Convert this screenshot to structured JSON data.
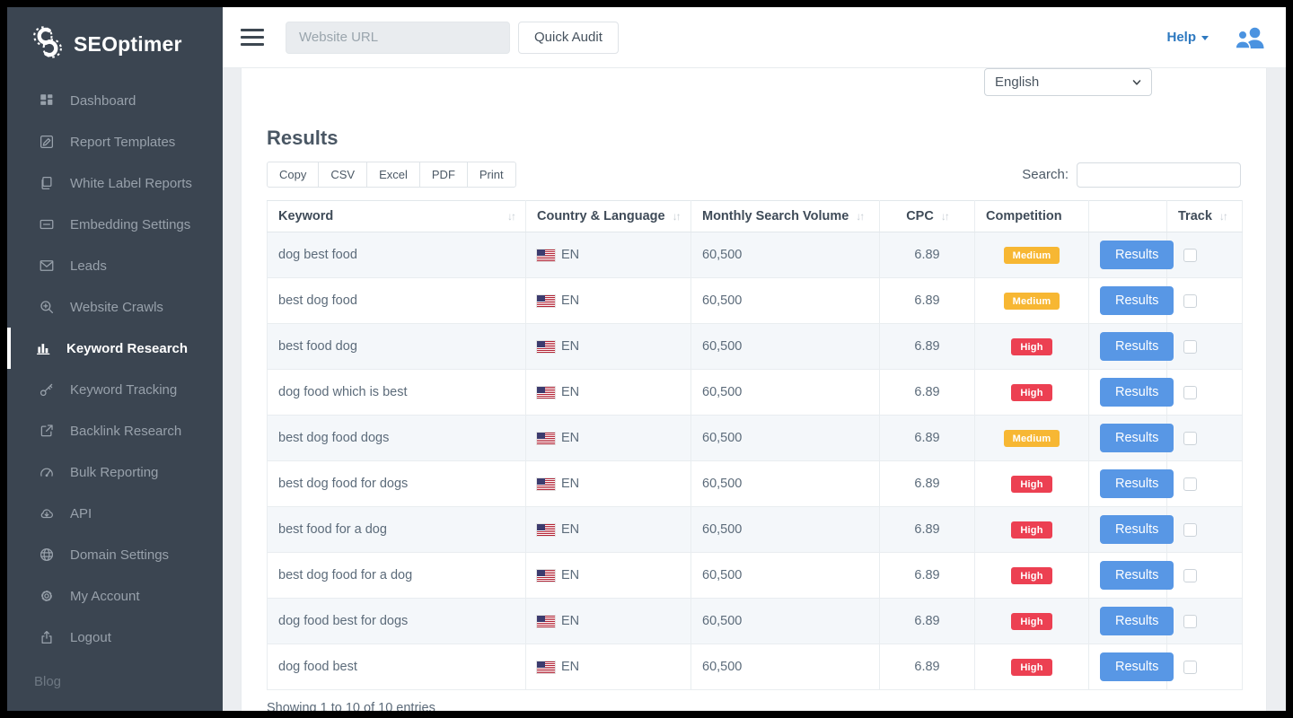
{
  "sidebar": {
    "logo_text": "SEOptimer",
    "items": [
      {
        "id": "dashboard",
        "label": "Dashboard",
        "icon": "grid",
        "active": false
      },
      {
        "id": "report-templates",
        "label": "Report Templates",
        "icon": "pencil-square",
        "active": false
      },
      {
        "id": "white-label-reports",
        "label": "White Label Reports",
        "icon": "pages",
        "active": false
      },
      {
        "id": "embedding-settings",
        "label": "Embedding Settings",
        "icon": "card",
        "active": false
      },
      {
        "id": "leads",
        "label": "Leads",
        "icon": "envelope",
        "active": false
      },
      {
        "id": "website-crawls",
        "label": "Website Crawls",
        "icon": "magnifier-plus",
        "active": false
      },
      {
        "id": "keyword-research",
        "label": "Keyword Research",
        "icon": "bar-chart",
        "active": true
      },
      {
        "id": "keyword-tracking",
        "label": "Keyword Tracking",
        "icon": "key",
        "active": false
      },
      {
        "id": "backlink-research",
        "label": "Backlink Research",
        "icon": "external-link",
        "active": false
      },
      {
        "id": "bulk-reporting",
        "label": "Bulk Reporting",
        "icon": "gauge",
        "active": false
      },
      {
        "id": "api",
        "label": "API",
        "icon": "cloud-download",
        "active": false
      },
      {
        "id": "domain-settings",
        "label": "Domain Settings",
        "icon": "globe",
        "active": false
      },
      {
        "id": "my-account",
        "label": "My Account",
        "icon": "gear",
        "active": false
      },
      {
        "id": "logout",
        "label": "Logout",
        "icon": "upload-box",
        "active": false
      }
    ],
    "footer_link": "Blog"
  },
  "navbar": {
    "url_placeholder": "Website URL",
    "quick_audit_label": "Quick Audit",
    "help_label": "Help"
  },
  "form": {
    "language_value": "English"
  },
  "results": {
    "title": "Results",
    "export_buttons": [
      "Copy",
      "CSV",
      "Excel",
      "PDF",
      "Print"
    ],
    "search_label": "Search:",
    "search_value": "",
    "table": {
      "action_label": "Results",
      "columns": [
        {
          "key": "keyword",
          "label": "Keyword",
          "sortable": true
        },
        {
          "key": "country",
          "label": "Country & Language",
          "sortable": true
        },
        {
          "key": "volume",
          "label": "Monthly Search Volume",
          "sortable": true
        },
        {
          "key": "cpc",
          "label": "CPC",
          "sortable": true
        },
        {
          "key": "competition",
          "label": "Competition",
          "sortable": false
        },
        {
          "key": "action",
          "label": "",
          "sortable": false
        },
        {
          "key": "track",
          "label": "Track",
          "sortable": true
        }
      ],
      "rows": [
        {
          "keyword": "dog best food",
          "country": "EN",
          "volume": "60,500",
          "cpc": "6.89",
          "competition": "Medium",
          "tracked": false
        },
        {
          "keyword": "best dog food",
          "country": "EN",
          "volume": "60,500",
          "cpc": "6.89",
          "competition": "Medium",
          "tracked": false
        },
        {
          "keyword": "best food dog",
          "country": "EN",
          "volume": "60,500",
          "cpc": "6.89",
          "competition": "High",
          "tracked": false
        },
        {
          "keyword": "dog food which is best",
          "country": "EN",
          "volume": "60,500",
          "cpc": "6.89",
          "competition": "High",
          "tracked": false
        },
        {
          "keyword": "best dog food dogs",
          "country": "EN",
          "volume": "60,500",
          "cpc": "6.89",
          "competition": "Medium",
          "tracked": false
        },
        {
          "keyword": "best dog food for dogs",
          "country": "EN",
          "volume": "60,500",
          "cpc": "6.89",
          "competition": "High",
          "tracked": false
        },
        {
          "keyword": "best food for a dog",
          "country": "EN",
          "volume": "60,500",
          "cpc": "6.89",
          "competition": "High",
          "tracked": false
        },
        {
          "keyword": "best dog food for a dog",
          "country": "EN",
          "volume": "60,500",
          "cpc": "6.89",
          "competition": "High",
          "tracked": false
        },
        {
          "keyword": "dog food best for dogs",
          "country": "EN",
          "volume": "60,500",
          "cpc": "6.89",
          "competition": "High",
          "tracked": false
        },
        {
          "keyword": "dog food best",
          "country": "EN",
          "volume": "60,500",
          "cpc": "6.89",
          "competition": "High",
          "tracked": false
        }
      ]
    },
    "footer_text": "Showing 1 to 10 of 10 entries"
  },
  "icons": {
    "sort": "↓↑"
  },
  "colors": {
    "sidebar_bg": "#3b4551",
    "accent_blue": "#5897e5",
    "help_blue": "#2e79c0",
    "competition": {
      "medium": "#f7b733",
      "high": "#ec4052"
    }
  }
}
